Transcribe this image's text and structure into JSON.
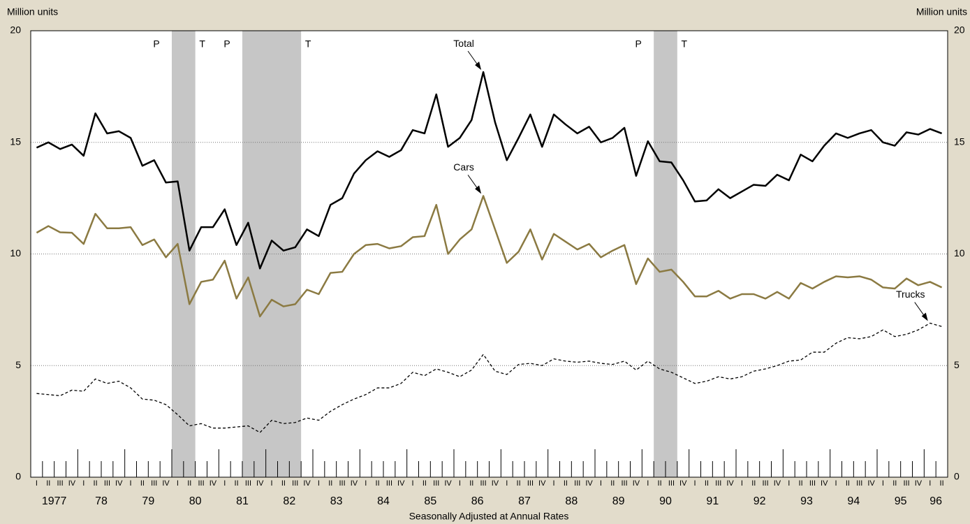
{
  "chart_data": {
    "type": "line",
    "y_unit_left": "Million units",
    "y_unit_right": "Million units",
    "x_label": "Seasonally Adjusted at Annual Rates",
    "categories": [
      "I",
      "II",
      "III",
      "IV",
      "I",
      "II",
      "III",
      "IV",
      "I",
      "II",
      "III",
      "IV",
      "I",
      "II",
      "III",
      "IV",
      "I",
      "II",
      "III",
      "IV",
      "I",
      "II",
      "III",
      "IV",
      "I",
      "II",
      "III",
      "IV",
      "I",
      "II",
      "III",
      "IV",
      "I",
      "II",
      "III",
      "IV",
      "I",
      "II",
      "III",
      "IV",
      "I",
      "II",
      "III",
      "IV",
      "I",
      "II",
      "III",
      "IV",
      "I",
      "II",
      "III",
      "IV",
      "I",
      "II",
      "III",
      "IV",
      "I",
      "II",
      "III",
      "IV",
      "I",
      "II",
      "III",
      "IV",
      "I",
      "II",
      "III",
      "IV",
      "I",
      "II",
      "III",
      "IV",
      "I",
      "II",
      "III",
      "IV",
      "I",
      "II"
    ],
    "year_labels": [
      "1977",
      "78",
      "79",
      "80",
      "81",
      "82",
      "83",
      "84",
      "85",
      "86",
      "87",
      "88",
      "89",
      "90",
      "91",
      "92",
      "93",
      "94",
      "95",
      "96"
    ],
    "ylim": [
      0,
      20
    ],
    "yticks": [
      0,
      5,
      10,
      15,
      20
    ],
    "grid": true,
    "recessions": [
      {
        "start": 12,
        "end": 13,
        "peak": "P",
        "trough": "T"
      },
      {
        "start": 18,
        "end": 22,
        "peak": "P",
        "trough": "T"
      },
      {
        "start": 53,
        "end": 54,
        "peak": "P",
        "trough": "T"
      }
    ],
    "series": [
      {
        "name": "Total",
        "color": "#000000",
        "style": "solid",
        "values": [
          14.76,
          15.0,
          14.7,
          14.9,
          14.4,
          16.3,
          15.4,
          15.5,
          15.2,
          13.95,
          14.2,
          13.2,
          13.25,
          10.15,
          11.2,
          11.2,
          12.0,
          10.4,
          11.4,
          9.35,
          10.6,
          10.15,
          10.3,
          11.1,
          10.8,
          12.2,
          12.5,
          13.6,
          14.2,
          14.6,
          14.35,
          14.65,
          15.55,
          15.4,
          17.15,
          14.8,
          15.2,
          16.0,
          18.15,
          15.9,
          14.2,
          15.2,
          16.25,
          14.8,
          16.25,
          15.8,
          15.4,
          15.7,
          15.0,
          15.2,
          15.65,
          13.5,
          15.05,
          14.15,
          14.1,
          13.3,
          12.35,
          12.4,
          12.9,
          12.5,
          12.8,
          13.1,
          13.05,
          13.55,
          13.3,
          14.45,
          14.15,
          14.85,
          15.4,
          15.2,
          15.4,
          15.55,
          15.0,
          14.85,
          15.45,
          15.35,
          15.6,
          15.4
        ]
      },
      {
        "name": "Cars",
        "color": "#8b7a42",
        "style": "solid",
        "values": [
          10.95,
          11.25,
          10.97,
          10.95,
          10.45,
          11.8,
          11.15,
          11.15,
          11.2,
          10.4,
          10.65,
          9.85,
          10.45,
          7.75,
          8.75,
          8.85,
          9.7,
          8.0,
          8.95,
          7.2,
          7.95,
          7.65,
          7.75,
          8.4,
          8.2,
          9.15,
          9.2,
          10.0,
          10.4,
          10.45,
          10.25,
          10.35,
          10.75,
          10.8,
          12.2,
          10.0,
          10.65,
          11.1,
          12.6,
          11.1,
          9.6,
          10.1,
          11.1,
          9.75,
          10.9,
          10.55,
          10.2,
          10.45,
          9.85,
          10.15,
          10.4,
          8.65,
          9.8,
          9.2,
          9.3,
          8.75,
          8.1,
          8.1,
          8.35,
          8.0,
          8.2,
          8.2,
          8.0,
          8.3,
          8.0,
          8.7,
          8.45,
          8.75,
          9.0,
          8.95,
          9.0,
          8.85,
          8.5,
          8.45,
          8.9,
          8.6,
          8.75,
          8.5
        ]
      },
      {
        "name": "Trucks",
        "color": "#000000",
        "style": "dashed",
        "values": [
          3.75,
          3.7,
          3.65,
          3.9,
          3.85,
          4.4,
          4.2,
          4.3,
          4.0,
          3.5,
          3.45,
          3.25,
          2.8,
          2.3,
          2.4,
          2.2,
          2.2,
          2.25,
          2.3,
          2.0,
          2.55,
          2.4,
          2.45,
          2.65,
          2.55,
          2.95,
          3.25,
          3.5,
          3.7,
          4.0,
          4.0,
          4.2,
          4.7,
          4.55,
          4.85,
          4.7,
          4.5,
          4.8,
          5.5,
          4.75,
          4.6,
          5.05,
          5.1,
          5.0,
          5.3,
          5.2,
          5.15,
          5.2,
          5.1,
          5.05,
          5.2,
          4.8,
          5.2,
          4.85,
          4.7,
          4.45,
          4.2,
          4.3,
          4.5,
          4.4,
          4.5,
          4.75,
          4.85,
          5.0,
          5.2,
          5.25,
          5.6,
          5.6,
          6.0,
          6.25,
          6.2,
          6.3,
          6.6,
          6.3,
          6.4,
          6.6,
          6.9,
          6.75
        ]
      }
    ]
  }
}
